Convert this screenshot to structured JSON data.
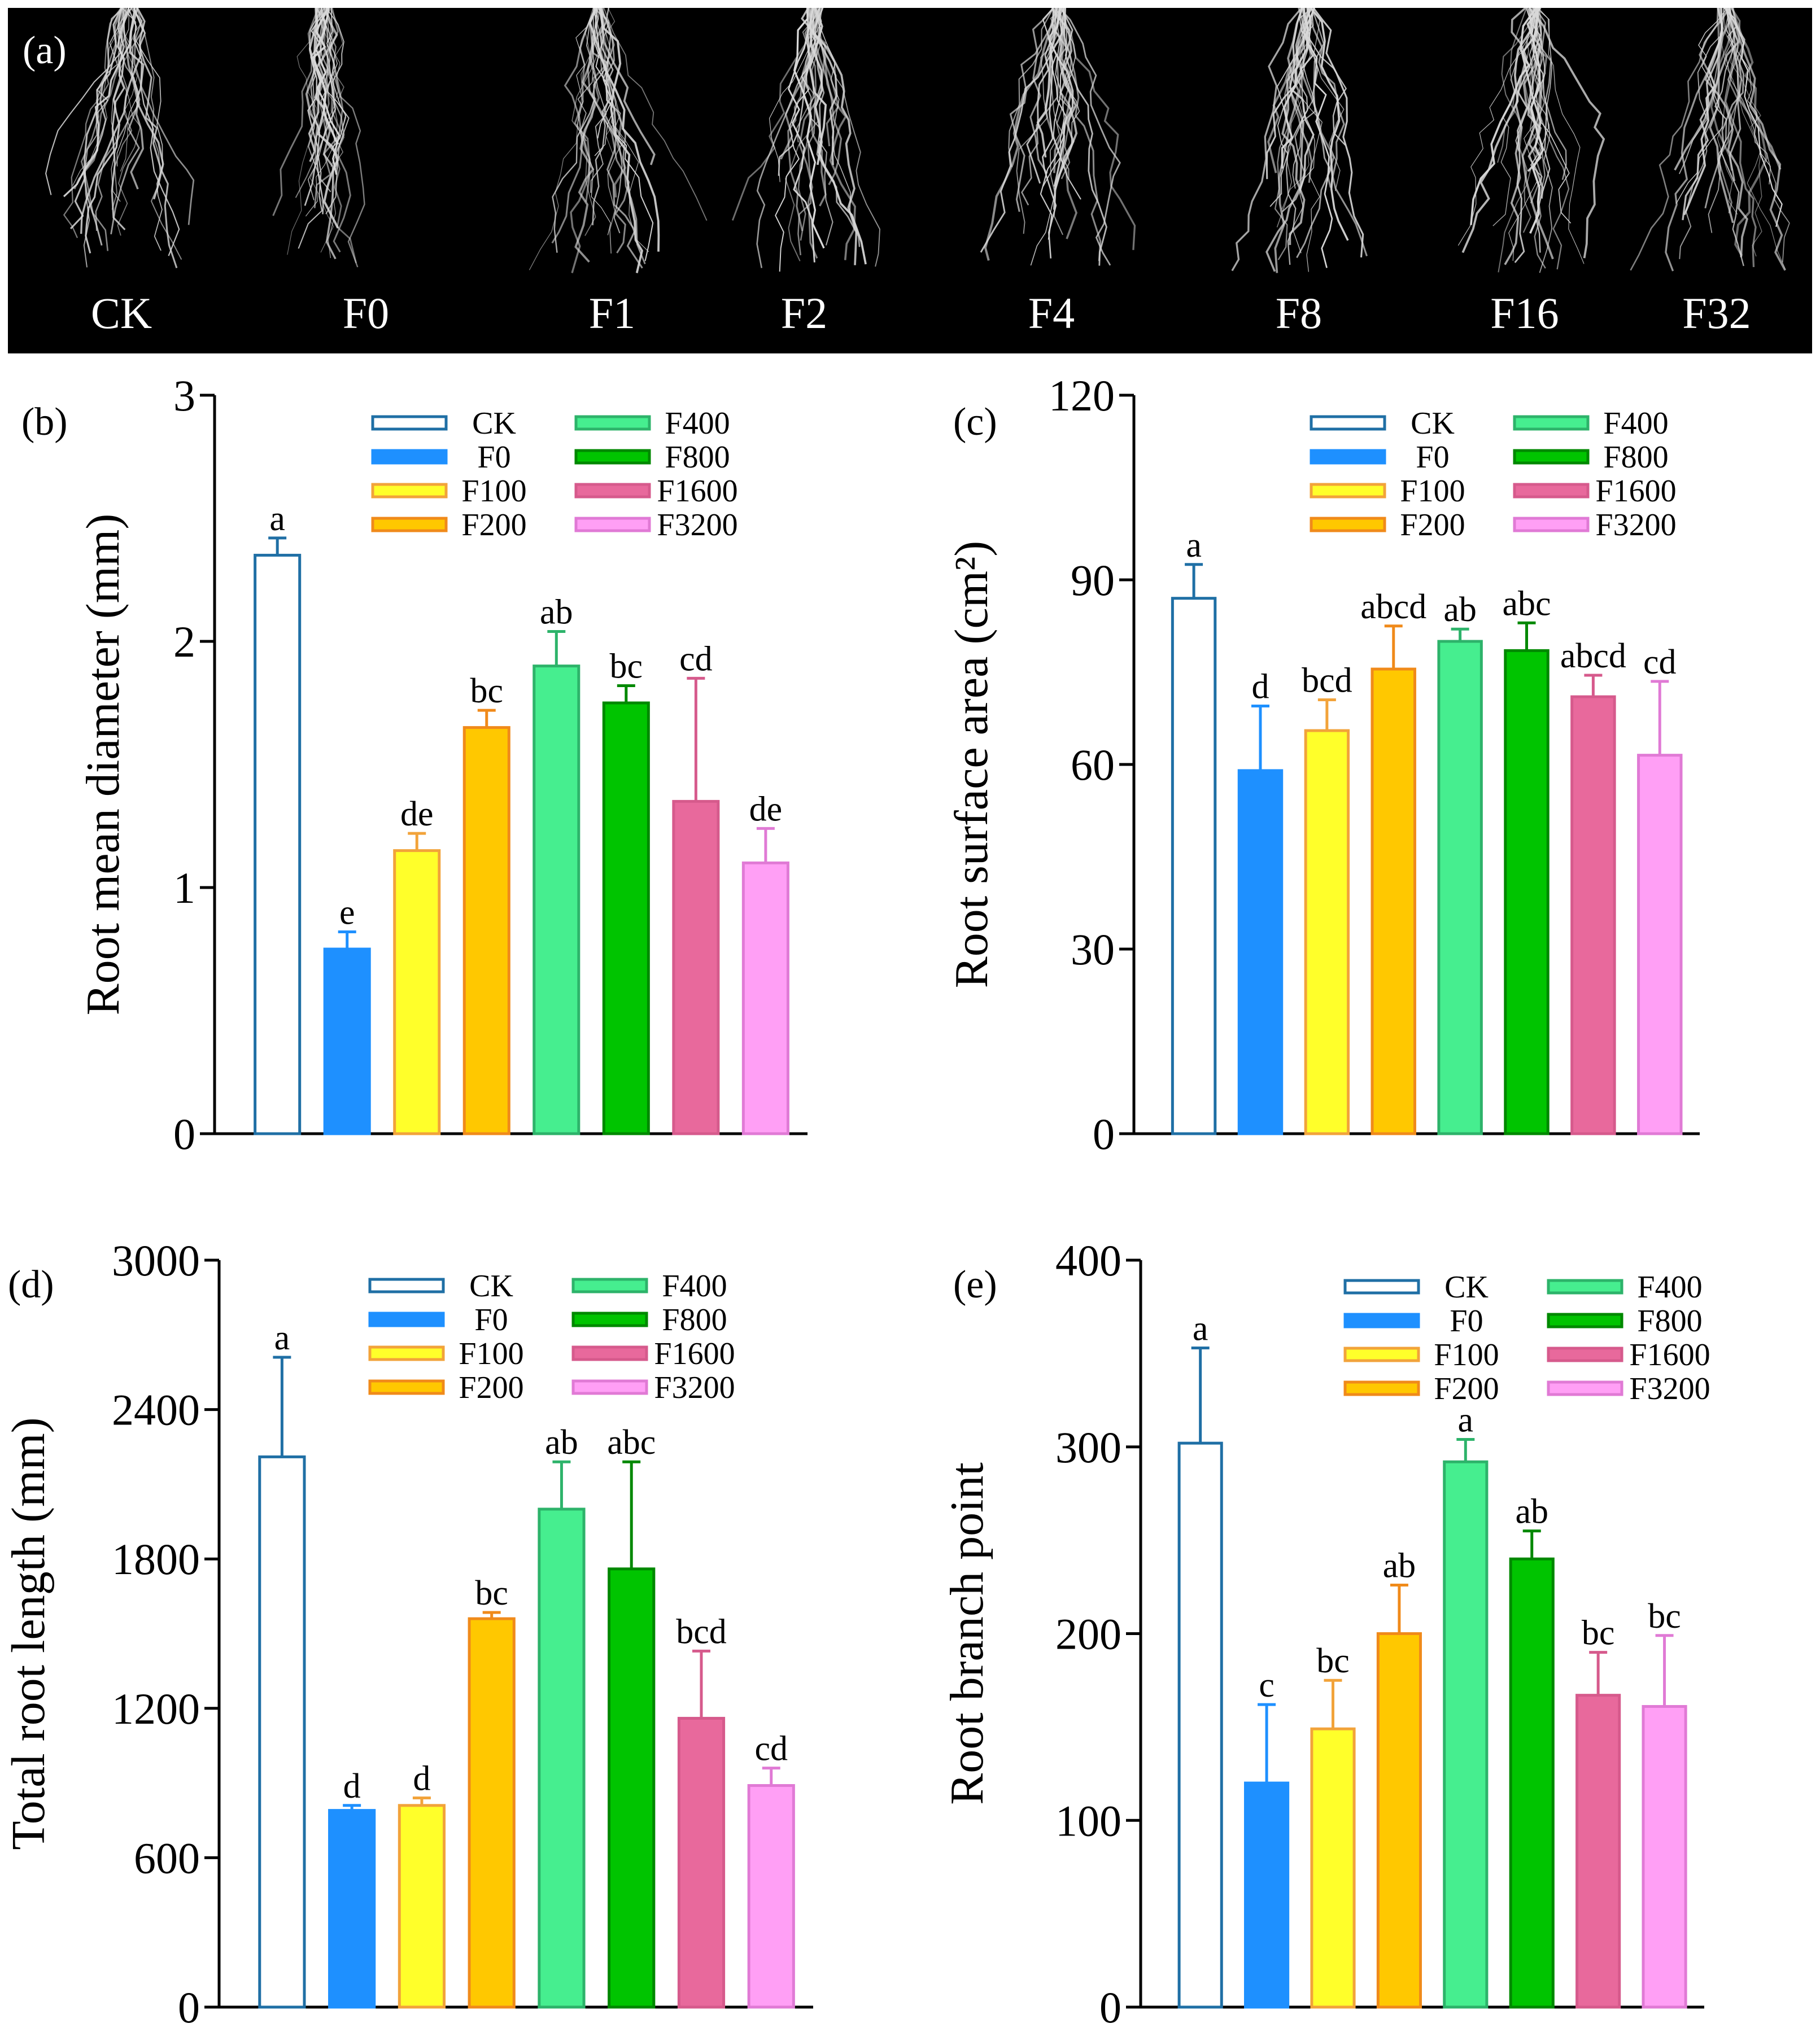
{
  "photo_panel": {
    "label": "(a)",
    "treatments": [
      "CK",
      "F0",
      "F1",
      "F2",
      "F4",
      "F8",
      "F16",
      "F32"
    ]
  },
  "legend": [
    "CK",
    "F0",
    "F100",
    "F200",
    "F400",
    "F800",
    "F1600",
    "F3200"
  ],
  "series_colors": {
    "CK": {
      "fill": "#ffffff",
      "stroke": "#1f6fa5"
    },
    "F0": {
      "fill": "#1e90ff",
      "stroke": "#1e90ff"
    },
    "F100": {
      "fill": "#ffff2a",
      "stroke": "#f2a33a"
    },
    "F200": {
      "fill": "#ffc800",
      "stroke": "#f08a1a"
    },
    "F400": {
      "fill": "#46ee8f",
      "stroke": "#2db36a"
    },
    "F800": {
      "fill": "#00c400",
      "stroke": "#008800"
    },
    "F1600": {
      "fill": "#e8699c",
      "stroke": "#d65a8c"
    },
    "F3200": {
      "fill": "#ff9ff5",
      "stroke": "#e07ad5"
    }
  },
  "chart_data": [
    {
      "id": "b",
      "panel_label": "(b)",
      "type": "bar",
      "ylabel": "Root mean diameter (mm)",
      "ylim": [
        0,
        3
      ],
      "yticks": [
        0,
        1,
        2,
        3
      ],
      "categories": [
        "CK",
        "F0",
        "F100",
        "F200",
        "F400",
        "F800",
        "F1600",
        "F3200"
      ],
      "values": [
        2.35,
        0.75,
        1.15,
        1.65,
        1.9,
        1.75,
        1.35,
        1.1
      ],
      "errors": [
        0.07,
        0.07,
        0.07,
        0.07,
        0.14,
        0.07,
        0.5,
        0.14
      ],
      "letters": [
        "a",
        "e",
        "de",
        "bc",
        "ab",
        "bc",
        "cd",
        "de"
      ]
    },
    {
      "id": "c",
      "panel_label": "(c)",
      "type": "bar",
      "ylabel": "Root surface area (cm²)",
      "ylim": [
        0,
        120
      ],
      "yticks": [
        0,
        30,
        60,
        90,
        120
      ],
      "categories": [
        "CK",
        "F0",
        "F100",
        "F200",
        "F400",
        "F800",
        "F1600",
        "F3200"
      ],
      "values": [
        87,
        59,
        65.5,
        75.5,
        80,
        78.5,
        71,
        61.5
      ],
      "errors": [
        5.5,
        10.5,
        5.0,
        7.0,
        2.0,
        4.5,
        3.5,
        12.0
      ],
      "letters": [
        "a",
        "d",
        "bcd",
        "abcd",
        "ab",
        "abc",
        "abcd",
        "cd"
      ]
    },
    {
      "id": "d",
      "panel_label": "(d)",
      "type": "bar",
      "ylabel": "Total root length (mm)",
      "ylim": [
        0,
        3000
      ],
      "yticks": [
        0,
        600,
        1200,
        1800,
        2400,
        3000
      ],
      "categories": [
        "CK",
        "F0",
        "F100",
        "F200",
        "F400",
        "F800",
        "F1600",
        "F3200"
      ],
      "values": [
        2210,
        790,
        810,
        1560,
        2000,
        1760,
        1160,
        890
      ],
      "errors": [
        400,
        20,
        30,
        25,
        190,
        430,
        270,
        70
      ],
      "letters": [
        "a",
        "d",
        "d",
        "bc",
        "ab",
        "abc",
        "bcd",
        "cd"
      ]
    },
    {
      "id": "e",
      "panel_label": "(e)",
      "type": "bar",
      "ylabel": "Root branch point",
      "ylim": [
        0,
        400
      ],
      "yticks": [
        0,
        100,
        200,
        300,
        400
      ],
      "categories": [
        "CK",
        "F0",
        "F100",
        "F200",
        "F400",
        "F800",
        "F1600",
        "F3200"
      ],
      "values": [
        302,
        120,
        149,
        200,
        292,
        240,
        167,
        161
      ],
      "errors": [
        51,
        42,
        26,
        26,
        12,
        15,
        23,
        38
      ],
      "letters": [
        "a",
        "c",
        "bc",
        "ab",
        "a",
        "ab",
        "bc",
        "bc"
      ]
    }
  ]
}
